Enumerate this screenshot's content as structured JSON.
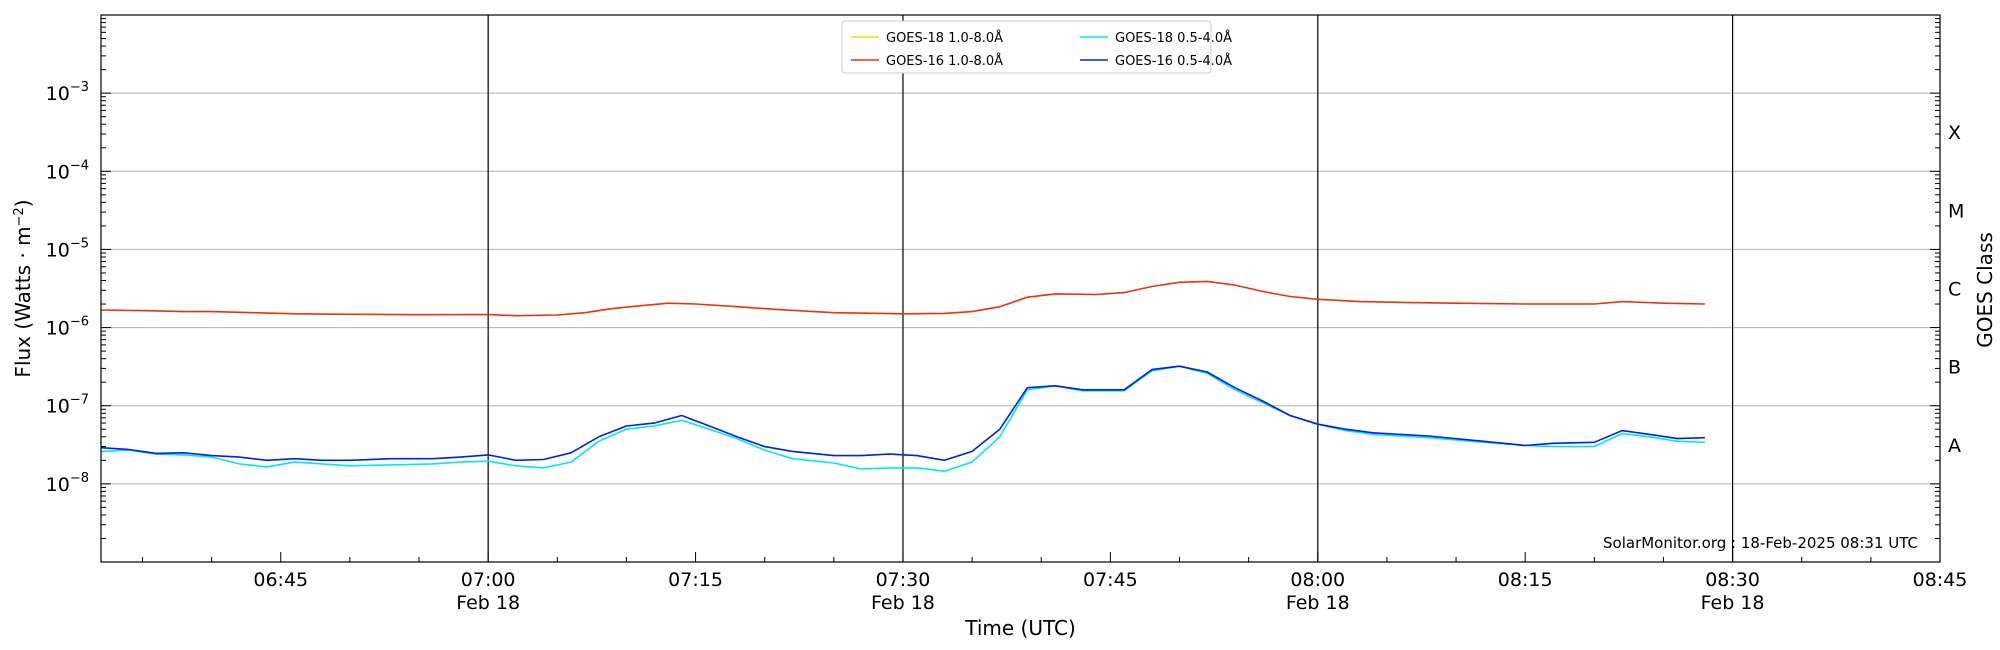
{
  "chart_data": {
    "type": "line",
    "xlabel": "Time (UTC)",
    "ylabel": "Flux (Watts · m",
    "ylabel_sup": "−2",
    "ylabel_close": ")",
    "right_label": "GOES Class",
    "credit": "SolarMonitor.org : 18-Feb-2025 08:31 UTC",
    "y_scale": "log",
    "ylim": [
      1e-09,
      0.01
    ],
    "y_ticks": [
      {
        "value": 1e-08,
        "base": "10",
        "exp": "−8"
      },
      {
        "value": 1e-07,
        "base": "10",
        "exp": "−7"
      },
      {
        "value": 1e-06,
        "base": "10",
        "exp": "−6"
      },
      {
        "value": 1e-05,
        "base": "10",
        "exp": "−5"
      },
      {
        "value": 0.0001,
        "base": "10",
        "exp": "−4"
      },
      {
        "value": 0.001,
        "base": "10",
        "exp": "−3"
      }
    ],
    "xlim": [
      "06:32",
      "08:45"
    ],
    "x_ticks": [
      {
        "time": "06:45",
        "label": "06:45",
        "date": ""
      },
      {
        "time": "07:00",
        "label": "07:00",
        "date": "Feb 18"
      },
      {
        "time": "07:15",
        "label": "07:15",
        "date": ""
      },
      {
        "time": "07:30",
        "label": "07:30",
        "date": "Feb 18"
      },
      {
        "time": "07:45",
        "label": "07:45",
        "date": ""
      },
      {
        "time": "08:00",
        "label": "08:00",
        "date": "Feb 18"
      },
      {
        "time": "08:15",
        "label": "08:15",
        "date": ""
      },
      {
        "time": "08:30",
        "label": "08:30",
        "date": "Feb 18"
      },
      {
        "time": "08:45",
        "label": "08:45",
        "date": ""
      }
    ],
    "vertical_lines": [
      "07:00",
      "07:30",
      "08:00",
      "08:30"
    ],
    "goes_classes": [
      {
        "label": "X",
        "value": 0.000316
      },
      {
        "label": "M",
        "value": 3.16e-05
      },
      {
        "label": "C",
        "value": 3.16e-06
      },
      {
        "label": "B",
        "value": 3.16e-07
      },
      {
        "label": "A",
        "value": 3.16e-08
      }
    ],
    "grid": "horizontal at decades",
    "legend_position": "top-center",
    "series": [
      {
        "name": "GOES-18 1.0-8.0Å",
        "color": "#ffd700",
        "points": []
      },
      {
        "name": "GOES-16 1.0-8.0Å",
        "color": "#e8340a",
        "points": [
          [
            "06:32",
            1.68e-06
          ],
          [
            "06:35",
            1.65e-06
          ],
          [
            "06:38",
            1.6e-06
          ],
          [
            "06:40",
            1.6e-06
          ],
          [
            "06:43",
            1.55e-06
          ],
          [
            "06:46",
            1.5e-06
          ],
          [
            "06:50",
            1.48e-06
          ],
          [
            "06:55",
            1.46e-06
          ],
          [
            "07:00",
            1.47e-06
          ],
          [
            "07:02",
            1.42e-06
          ],
          [
            "07:05",
            1.45e-06
          ],
          [
            "07:07",
            1.55e-06
          ],
          [
            "07:09",
            1.75e-06
          ],
          [
            "07:11",
            1.9e-06
          ],
          [
            "07:13",
            2.05e-06
          ],
          [
            "07:15",
            2e-06
          ],
          [
            "07:18",
            1.85e-06
          ],
          [
            "07:21",
            1.7e-06
          ],
          [
            "07:25",
            1.55e-06
          ],
          [
            "07:30",
            1.5e-06
          ],
          [
            "07:33",
            1.52e-06
          ],
          [
            "07:35",
            1.6e-06
          ],
          [
            "07:37",
            1.85e-06
          ],
          [
            "07:39",
            2.45e-06
          ],
          [
            "07:41",
            2.7e-06
          ],
          [
            "07:44",
            2.65e-06
          ],
          [
            "07:46",
            2.8e-06
          ],
          [
            "07:48",
            3.35e-06
          ],
          [
            "07:50",
            3.8e-06
          ],
          [
            "07:52",
            3.9e-06
          ],
          [
            "07:54",
            3.5e-06
          ],
          [
            "07:56",
            2.9e-06
          ],
          [
            "07:58",
            2.5e-06
          ],
          [
            "08:00",
            2.3e-06
          ],
          [
            "08:03",
            2.15e-06
          ],
          [
            "08:06",
            2.1e-06
          ],
          [
            "08:10",
            2.05e-06
          ],
          [
            "08:15",
            2e-06
          ],
          [
            "08:20",
            2e-06
          ],
          [
            "08:22",
            2.15e-06
          ],
          [
            "08:25",
            2.05e-06
          ],
          [
            "08:28",
            2e-06
          ]
        ]
      },
      {
        "name": "GOES-18 0.5-4.0Å",
        "color": "#00e5ff",
        "points": [
          [
            "06:32",
            2.6e-08
          ],
          [
            "06:34",
            2.7e-08
          ],
          [
            "06:36",
            2.4e-08
          ],
          [
            "06:38",
            2.35e-08
          ],
          [
            "06:40",
            2.2e-08
          ],
          [
            "06:42",
            1.8e-08
          ],
          [
            "06:44",
            1.65e-08
          ],
          [
            "06:46",
            1.9e-08
          ],
          [
            "06:48",
            1.8e-08
          ],
          [
            "06:50",
            1.7e-08
          ],
          [
            "06:53",
            1.75e-08
          ],
          [
            "06:56",
            1.8e-08
          ],
          [
            "06:58",
            1.9e-08
          ],
          [
            "07:00",
            1.95e-08
          ],
          [
            "07:02",
            1.7e-08
          ],
          [
            "07:04",
            1.6e-08
          ],
          [
            "07:06",
            1.9e-08
          ],
          [
            "07:08",
            3.5e-08
          ],
          [
            "07:10",
            5e-08
          ],
          [
            "07:12",
            5.5e-08
          ],
          [
            "07:14",
            6.5e-08
          ],
          [
            "07:16",
            5e-08
          ],
          [
            "07:18",
            3.8e-08
          ],
          [
            "07:20",
            2.7e-08
          ],
          [
            "07:22",
            2.1e-08
          ],
          [
            "07:25",
            1.85e-08
          ],
          [
            "07:27",
            1.55e-08
          ],
          [
            "07:29",
            1.6e-08
          ],
          [
            "07:31",
            1.6e-08
          ],
          [
            "07:33",
            1.45e-08
          ],
          [
            "07:35",
            1.9e-08
          ],
          [
            "07:37",
            4e-08
          ],
          [
            "07:39",
            1.6e-07
          ],
          [
            "07:41",
            1.8e-07
          ],
          [
            "07:43",
            1.55e-07
          ],
          [
            "07:46",
            1.55e-07
          ],
          [
            "07:48",
            2.8e-07
          ],
          [
            "07:50",
            3.2e-07
          ],
          [
            "07:52",
            2.6e-07
          ],
          [
            "07:54",
            1.6e-07
          ],
          [
            "07:56",
            1.1e-07
          ],
          [
            "07:58",
            7.5e-08
          ],
          [
            "08:00",
            5.8e-08
          ],
          [
            "08:02",
            4.8e-08
          ],
          [
            "08:04",
            4.3e-08
          ],
          [
            "08:08",
            3.9e-08
          ],
          [
            "08:12",
            3.4e-08
          ],
          [
            "08:15",
            3.1e-08
          ],
          [
            "08:17",
            3e-08
          ],
          [
            "08:20",
            3e-08
          ],
          [
            "08:22",
            4.4e-08
          ],
          [
            "08:24",
            4e-08
          ],
          [
            "08:26",
            3.5e-08
          ],
          [
            "08:28",
            3.4e-08
          ]
        ]
      },
      {
        "name": "GOES-16 0.5-4.0Å",
        "color": "#0022dd",
        "points": [
          [
            "06:32",
            2.9e-08
          ],
          [
            "06:34",
            2.75e-08
          ],
          [
            "06:36",
            2.45e-08
          ],
          [
            "06:38",
            2.5e-08
          ],
          [
            "06:40",
            2.3e-08
          ],
          [
            "06:42",
            2.2e-08
          ],
          [
            "06:44",
            2e-08
          ],
          [
            "06:46",
            2.1e-08
          ],
          [
            "06:48",
            2e-08
          ],
          [
            "06:50",
            2e-08
          ],
          [
            "06:53",
            2.1e-08
          ],
          [
            "06:56",
            2.1e-08
          ],
          [
            "06:58",
            2.2e-08
          ],
          [
            "07:00",
            2.35e-08
          ],
          [
            "07:02",
            2e-08
          ],
          [
            "07:04",
            2.05e-08
          ],
          [
            "07:06",
            2.5e-08
          ],
          [
            "07:08",
            4e-08
          ],
          [
            "07:10",
            5.5e-08
          ],
          [
            "07:12",
            6e-08
          ],
          [
            "07:14",
            7.5e-08
          ],
          [
            "07:16",
            5.5e-08
          ],
          [
            "07:18",
            4e-08
          ],
          [
            "07:20",
            3e-08
          ],
          [
            "07:22",
            2.6e-08
          ],
          [
            "07:25",
            2.3e-08
          ],
          [
            "07:27",
            2.3e-08
          ],
          [
            "07:29",
            2.4e-08
          ],
          [
            "07:31",
            2.3e-08
          ],
          [
            "07:33",
            2e-08
          ],
          [
            "07:35",
            2.6e-08
          ],
          [
            "07:37",
            5e-08
          ],
          [
            "07:39",
            1.7e-07
          ],
          [
            "07:41",
            1.8e-07
          ],
          [
            "07:43",
            1.6e-07
          ],
          [
            "07:46",
            1.6e-07
          ],
          [
            "07:48",
            2.9e-07
          ],
          [
            "07:50",
            3.2e-07
          ],
          [
            "07:52",
            2.7e-07
          ],
          [
            "07:54",
            1.7e-07
          ],
          [
            "07:56",
            1.15e-07
          ],
          [
            "07:58",
            7.5e-08
          ],
          [
            "08:00",
            5.8e-08
          ],
          [
            "08:02",
            5e-08
          ],
          [
            "08:04",
            4.5e-08
          ],
          [
            "08:08",
            4.1e-08
          ],
          [
            "08:12",
            3.5e-08
          ],
          [
            "08:15",
            3.1e-08
          ],
          [
            "08:17",
            3.3e-08
          ],
          [
            "08:20",
            3.4e-08
          ],
          [
            "08:22",
            4.8e-08
          ],
          [
            "08:24",
            4.3e-08
          ],
          [
            "08:26",
            3.8e-08
          ],
          [
            "08:28",
            3.9e-08
          ]
        ]
      }
    ]
  }
}
